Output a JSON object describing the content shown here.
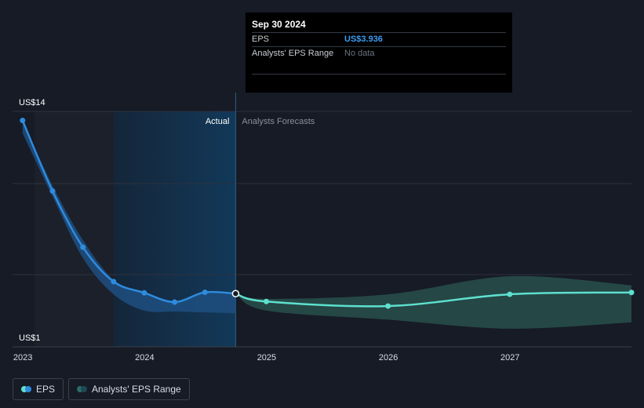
{
  "tooltip": {
    "date": "Sep 30 2024",
    "eps_label": "EPS",
    "eps_value": "US$3.936",
    "range_label": "Analysts' EPS Range",
    "range_value": "No data"
  },
  "legend": {
    "eps": "EPS",
    "range": "Analysts' EPS Range"
  },
  "colors": {
    "background": "#161b26",
    "eps_actual": "#2e8bde",
    "eps_forecast": "#5ee0cf",
    "range_fill": "#2c5a52",
    "actual_shade": "#123a5c"
  },
  "chart_data": {
    "type": "line",
    "y_axis_labels": [
      "US$14",
      "US$1"
    ],
    "ylim": [
      1,
      14
    ],
    "x_tick_labels": [
      "2023",
      "2024",
      "2025",
      "2026",
      "2027"
    ],
    "xlim": [
      "2022-12-01",
      "2027-12-31"
    ],
    "divider_labels": {
      "actual": "Actual",
      "forecast": "Analysts Forecasts"
    },
    "divider_date": "2024-09-30",
    "series": [
      {
        "name": "EPS",
        "segment": "actual",
        "points": [
          {
            "x": "2022-12-31",
            "y": 13.5
          },
          {
            "x": "2023-03-31",
            "y": 9.6
          },
          {
            "x": "2023-06-30",
            "y": 6.5
          },
          {
            "x": "2023-09-30",
            "y": 4.6
          },
          {
            "x": "2023-12-31",
            "y": 3.98
          },
          {
            "x": "2024-03-31",
            "y": 3.47
          },
          {
            "x": "2024-06-30",
            "y": 4.01
          },
          {
            "x": "2024-09-30",
            "y": 3.936
          }
        ]
      },
      {
        "name": "EPS",
        "segment": "forecast",
        "points": [
          {
            "x": "2024-09-30",
            "y": 3.936
          },
          {
            "x": "2024-12-31",
            "y": 3.5
          },
          {
            "x": "2025-12-31",
            "y": 3.25
          },
          {
            "x": "2026-12-31",
            "y": 3.9
          },
          {
            "x": "2027-12-31",
            "y": 4.0
          }
        ]
      }
    ],
    "actual_band": [
      {
        "x": "2022-12-31",
        "low": 12.8,
        "high": 13.5
      },
      {
        "x": "2023-03-31",
        "low": 9.3,
        "high": 9.9
      },
      {
        "x": "2023-06-30",
        "low": 5.9,
        "high": 6.9
      },
      {
        "x": "2023-09-30",
        "low": 3.9,
        "high": 4.7
      },
      {
        "x": "2023-12-31",
        "low": 3.0,
        "high": 3.98
      },
      {
        "x": "2024-03-31",
        "low": 2.95,
        "high": 3.47
      },
      {
        "x": "2024-06-30",
        "low": 2.9,
        "high": 4.01
      },
      {
        "x": "2024-09-30",
        "low": 2.85,
        "high": 3.936
      }
    ],
    "range_band": [
      {
        "x": "2024-09-30",
        "low": 3.936,
        "high": 3.936
      },
      {
        "x": "2024-12-31",
        "low": 3.0,
        "high": 3.65
      },
      {
        "x": "2025-12-31",
        "low": 2.5,
        "high": 3.9
      },
      {
        "x": "2026-12-31",
        "low": 2.0,
        "high": 4.9
      },
      {
        "x": "2027-12-31",
        "low": 2.35,
        "high": 4.4
      }
    ]
  }
}
